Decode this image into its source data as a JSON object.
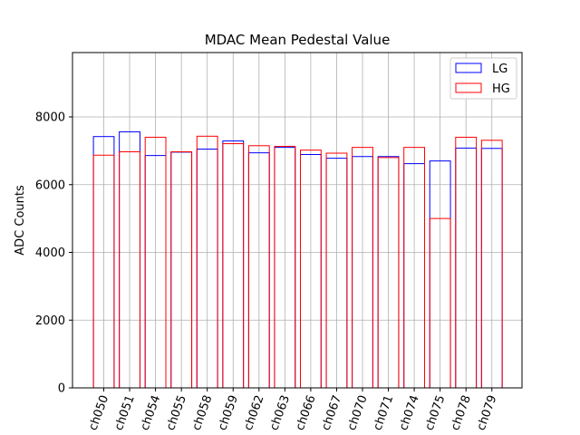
{
  "chart_data": {
    "type": "bar",
    "title": "MDAC Mean Pedestal Value",
    "xlabel": "",
    "ylabel": "ADC Counts",
    "ylim": [
      0,
      9900
    ],
    "yticks": [
      0,
      2000,
      4000,
      6000,
      8000
    ],
    "grid": true,
    "legend_position": "top-right",
    "categories": [
      "ch050",
      "ch051",
      "ch054",
      "ch055",
      "ch058",
      "ch059",
      "ch062",
      "ch063",
      "ch066",
      "ch067",
      "ch070",
      "ch071",
      "ch074",
      "ch075",
      "ch078",
      "ch079"
    ],
    "series": [
      {
        "name": "LG",
        "color": "#0000ff",
        "values": [
          7420,
          7560,
          6860,
          6960,
          7050,
          7290,
          6940,
          7100,
          6890,
          6780,
          6830,
          6830,
          6620,
          6700,
          7080,
          7070
        ]
      },
      {
        "name": "HG",
        "color": "#ff0000",
        "values": [
          6870,
          6970,
          7400,
          6970,
          7430,
          7210,
          7150,
          7130,
          7020,
          6930,
          7100,
          6800,
          7100,
          5000,
          7400,
          7310
        ]
      }
    ]
  }
}
